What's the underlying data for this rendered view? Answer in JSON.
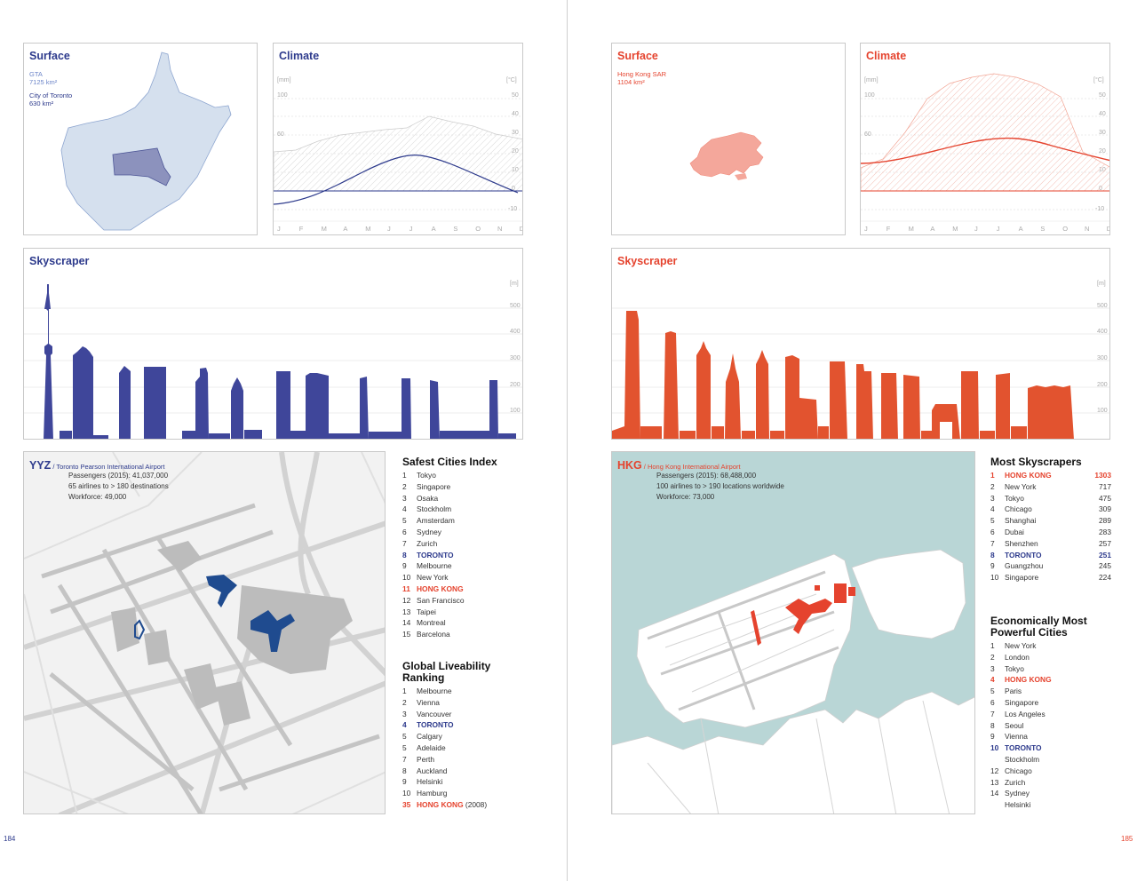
{
  "left": {
    "accent": "#2d3a8c",
    "surface": {
      "title": "Surface",
      "region_label": "GTA",
      "region_area": "7125 km²",
      "city_label": "City of Toronto",
      "city_area": "630 km²"
    },
    "climate": {
      "title": "Climate",
      "unit_left": "[mm]",
      "unit_right": "[°C]",
      "left_ticks": [
        "100",
        "60"
      ],
      "right_ticks": [
        "50",
        "40",
        "30",
        "20",
        "10",
        "0",
        "-10"
      ],
      "months": [
        "J",
        "F",
        "M",
        "A",
        "M",
        "J",
        "J",
        "A",
        "S",
        "O",
        "N",
        "D"
      ]
    },
    "skyscraper": {
      "title": "Skyscraper",
      "unit": "[m]",
      "ticks": [
        "500",
        "400",
        "300",
        "200",
        "100"
      ]
    },
    "airport": {
      "code": "YYZ",
      "name": "/ Toronto Pearson International Airport",
      "stats": [
        "Passengers (2015): 41,037,000",
        "65 airlines to > 180 destinations",
        "Workforce: 49,000"
      ]
    },
    "safest": {
      "title": "Safest Cities Index",
      "items": [
        {
          "n": "1",
          "c": "Tokyo"
        },
        {
          "n": "2",
          "c": "Singapore"
        },
        {
          "n": "3",
          "c": "Osaka"
        },
        {
          "n": "4",
          "c": "Stockholm"
        },
        {
          "n": "5",
          "c": "Amsterdam"
        },
        {
          "n": "6",
          "c": "Sydney"
        },
        {
          "n": "7",
          "c": "Zurich"
        },
        {
          "n": "8",
          "c": "TORONTO"
        },
        {
          "n": "9",
          "c": "Melbourne"
        },
        {
          "n": "10",
          "c": "New York"
        },
        {
          "n": "11",
          "c": "HONG KONG"
        },
        {
          "n": "12",
          "c": "San Francisco"
        },
        {
          "n": "13",
          "c": "Taipei"
        },
        {
          "n": "14",
          "c": "Montreal"
        },
        {
          "n": "15",
          "c": "Barcelona"
        }
      ]
    },
    "liveability": {
      "title_1": "Global Liveability",
      "title_2": "Ranking",
      "items": [
        {
          "n": "1",
          "c": "Melbourne"
        },
        {
          "n": "2",
          "c": "Vienna"
        },
        {
          "n": "3",
          "c": "Vancouver"
        },
        {
          "n": "4",
          "c": "TORONTO"
        },
        {
          "n": "5",
          "c": "Calgary"
        },
        {
          "n": "5",
          "c": "Adelaide"
        },
        {
          "n": "7",
          "c": "Perth"
        },
        {
          "n": "8",
          "c": "Auckland"
        },
        {
          "n": "9",
          "c": "Helsinki"
        },
        {
          "n": "10",
          "c": "Hamburg"
        },
        {
          "n": "35",
          "c": "HONG KONG",
          "extra": "(2008)"
        }
      ]
    },
    "page_number": "184"
  },
  "right": {
    "accent": "#e5432e",
    "surface": {
      "title": "Surface",
      "region_label": "Hong Kong SAR",
      "region_area": "1104 km²"
    },
    "climate": {
      "title": "Climate",
      "unit_left": "[mm]",
      "unit_right": "[°C]",
      "left_ticks": [
        "100",
        "60"
      ],
      "right_ticks": [
        "50",
        "40",
        "30",
        "20",
        "10",
        "0",
        "-10"
      ],
      "months": [
        "J",
        "F",
        "M",
        "A",
        "M",
        "J",
        "J",
        "A",
        "S",
        "O",
        "N",
        "D"
      ]
    },
    "skyscraper": {
      "title": "Skyscraper",
      "unit": "[m]",
      "ticks": [
        "500",
        "400",
        "300",
        "200",
        "100"
      ]
    },
    "airport": {
      "code": "HKG",
      "name": "/ Hong Kong International Airport",
      "stats": [
        "Passengers (2015): 68,488,000",
        "100 airlines to > 190 locations worldwide",
        "Workforce: 73,000"
      ]
    },
    "most_skyscrapers": {
      "title": "Most Skyscrapers",
      "items": [
        {
          "n": "1",
          "c": "HONG KONG",
          "v": "1303"
        },
        {
          "n": "2",
          "c": "New York",
          "v": "717"
        },
        {
          "n": "3",
          "c": "Tokyo",
          "v": "475"
        },
        {
          "n": "4",
          "c": "Chicago",
          "v": "309"
        },
        {
          "n": "5",
          "c": "Shanghai",
          "v": "289"
        },
        {
          "n": "6",
          "c": "Dubai",
          "v": "283"
        },
        {
          "n": "7",
          "c": "Shenzhen",
          "v": "257"
        },
        {
          "n": "8",
          "c": "TORONTO",
          "v": "251"
        },
        {
          "n": "9",
          "c": "Guangzhou",
          "v": "245"
        },
        {
          "n": "10",
          "c": "Singapore",
          "v": "224"
        }
      ]
    },
    "economic": {
      "title_1": "Economically Most",
      "title_2": "Powerful Cities",
      "items": [
        {
          "n": "1",
          "c": "New York"
        },
        {
          "n": "2",
          "c": "London"
        },
        {
          "n": "3",
          "c": "Tokyo"
        },
        {
          "n": "4",
          "c": "HONG KONG"
        },
        {
          "n": "5",
          "c": "Paris"
        },
        {
          "n": "6",
          "c": "Singapore"
        },
        {
          "n": "7",
          "c": "Los Angeles"
        },
        {
          "n": "8",
          "c": "Seoul"
        },
        {
          "n": "9",
          "c": "Vienna"
        },
        {
          "n": "10",
          "c": "TORONTO"
        },
        {
          "n": "",
          "c": "Stockholm"
        },
        {
          "n": "12",
          "c": "Chicago"
        },
        {
          "n": "13",
          "c": "Zurich"
        },
        {
          "n": "14",
          "c": "Sydney"
        },
        {
          "n": "",
          "c": "Helsinki"
        }
      ]
    },
    "page_number": "185"
  }
}
